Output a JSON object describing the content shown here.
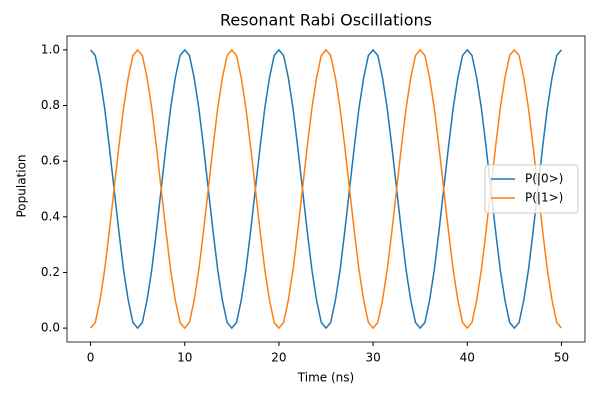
{
  "chart_data": {
    "type": "line",
    "title": "Resonant Rabi Oscillations",
    "x_label": "Time (ns)",
    "y_label": "Population",
    "x": [
      0,
      0.5,
      1,
      1.5,
      2,
      2.5,
      3,
      3.5,
      4,
      4.5,
      5,
      5.5,
      6,
      6.5,
      7,
      7.5,
      8,
      8.5,
      9,
      9.5,
      10,
      10.5,
      11,
      11.5,
      12,
      12.5,
      13,
      13.5,
      14,
      14.5,
      15,
      15.5,
      16,
      16.5,
      17,
      17.5,
      18,
      18.5,
      19,
      19.5,
      20,
      20.5,
      21,
      21.5,
      22,
      22.5,
      23,
      23.5,
      24,
      24.5,
      25,
      25.5,
      26,
      26.5,
      27,
      27.5,
      28,
      28.5,
      29,
      29.5,
      30,
      30.5,
      31,
      31.5,
      32,
      32.5,
      33,
      33.5,
      34,
      34.5,
      35,
      35.5,
      36,
      36.5,
      37,
      37.5,
      38,
      38.5,
      39,
      39.5,
      40,
      40.5,
      41,
      41.5,
      42,
      42.5,
      43,
      43.5,
      44,
      44.5,
      45,
      45.5,
      46,
      46.5,
      47,
      47.5,
      48,
      48.5,
      49,
      49.5,
      50
    ],
    "series": [
      {
        "name": "P(|0>)",
        "color": "#1f77b4",
        "values": [
          1,
          0.98,
          0.9,
          0.79,
          0.65,
          0.5,
          0.35,
          0.21,
          0.1,
          0.02,
          0,
          0.02,
          0.1,
          0.21,
          0.35,
          0.5,
          0.65,
          0.79,
          0.9,
          0.98,
          1,
          0.98,
          0.9,
          0.79,
          0.65,
          0.5,
          0.35,
          0.21,
          0.1,
          0.02,
          0,
          0.02,
          0.1,
          0.21,
          0.35,
          0.5,
          0.65,
          0.79,
          0.9,
          0.98,
          1,
          0.98,
          0.9,
          0.79,
          0.65,
          0.5,
          0.35,
          0.21,
          0.1,
          0.02,
          0,
          0.02,
          0.1,
          0.21,
          0.35,
          0.5,
          0.65,
          0.79,
          0.9,
          0.98,
          1,
          0.98,
          0.9,
          0.79,
          0.65,
          0.5,
          0.35,
          0.21,
          0.1,
          0.02,
          0,
          0.02,
          0.1,
          0.21,
          0.35,
          0.5,
          0.65,
          0.79,
          0.9,
          0.98,
          1,
          0.98,
          0.9,
          0.79,
          0.65,
          0.5,
          0.35,
          0.21,
          0.1,
          0.02,
          0,
          0.02,
          0.1,
          0.21,
          0.35,
          0.5,
          0.65,
          0.79,
          0.9,
          0.98,
          1
        ]
      },
      {
        "name": "P(|1>)",
        "color": "#ff7f0e",
        "values": [
          0,
          0.02,
          0.1,
          0.21,
          0.35,
          0.5,
          0.65,
          0.79,
          0.9,
          0.98,
          1,
          0.98,
          0.9,
          0.79,
          0.65,
          0.5,
          0.35,
          0.21,
          0.1,
          0.02,
          0,
          0.02,
          0.1,
          0.21,
          0.35,
          0.5,
          0.65,
          0.79,
          0.9,
          0.98,
          1,
          0.98,
          0.9,
          0.79,
          0.65,
          0.5,
          0.35,
          0.21,
          0.1,
          0.02,
          0,
          0.02,
          0.1,
          0.21,
          0.35,
          0.5,
          0.65,
          0.79,
          0.9,
          0.98,
          1,
          0.98,
          0.9,
          0.79,
          0.65,
          0.5,
          0.35,
          0.21,
          0.1,
          0.02,
          0,
          0.02,
          0.1,
          0.21,
          0.35,
          0.5,
          0.65,
          0.79,
          0.9,
          0.98,
          1,
          0.98,
          0.9,
          0.79,
          0.65,
          0.5,
          0.35,
          0.21,
          0.1,
          0.02,
          0,
          0.02,
          0.1,
          0.21,
          0.35,
          0.5,
          0.65,
          0.79,
          0.9,
          0.98,
          1,
          0.98,
          0.9,
          0.79,
          0.65,
          0.5,
          0.35,
          0.21,
          0.1,
          0.02,
          0
        ]
      }
    ],
    "xlim": [
      -2.5,
      52.5
    ],
    "xticks": [
      0,
      10,
      20,
      30,
      40,
      50
    ],
    "ylim": [
      -0.05,
      1.05
    ],
    "yticks": [
      {
        "value": 0,
        "label": "0.0"
      },
      {
        "value": 0.2,
        "label": "0.2"
      },
      {
        "value": 0.4,
        "label": "0.4"
      },
      {
        "value": 0.6,
        "label": "0.6"
      },
      {
        "value": 0.8,
        "label": "0.8"
      },
      {
        "value": 1,
        "label": "1.0"
      }
    ],
    "grid": false,
    "legend": "center right"
  }
}
